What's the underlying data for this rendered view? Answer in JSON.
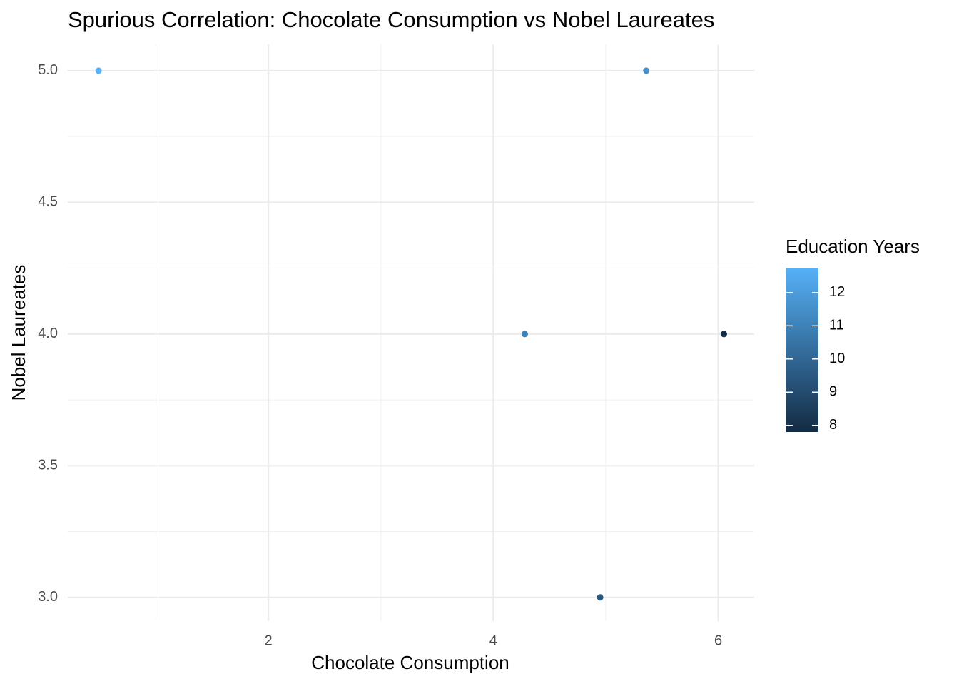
{
  "chart_data": {
    "type": "scatter",
    "title": "Spurious Correlation: Chocolate Consumption vs Nobel Laureates",
    "x_label": "Chocolate Consumption",
    "y_label": "Nobel Laureates",
    "x": [
      0.49,
      5.36,
      4.28,
      6.05,
      4.95
    ],
    "values": [
      5.0,
      5.0,
      4.0,
      4.0,
      3.0
    ],
    "color_values": [
      12.8,
      11.5,
      11.0,
      8.0,
      9.5
    ],
    "xlim": [
      0.216,
      6.32
    ],
    "ylim": [
      2.91,
      5.1
    ],
    "xticks": [
      2,
      4,
      6
    ],
    "yticks": [
      {
        "value": 3,
        "label": "3.0"
      },
      {
        "value": 3.5,
        "label": "3.5"
      },
      {
        "value": 4,
        "label": "4.0"
      },
      {
        "value": 4.5,
        "label": "4.5"
      },
      {
        "value": 5,
        "label": "5.0"
      }
    ],
    "x_minor_ticks": [
      1,
      3,
      5
    ],
    "y_minor_ticks": [
      3.25,
      3.75,
      4.25,
      4.75
    ],
    "grid": true,
    "legend": {
      "title": "Education Years",
      "position": "right",
      "colorlim": [
        7.8,
        12.75
      ],
      "ticks": [
        8,
        9,
        10,
        11,
        12
      ],
      "low_color": "#132B43",
      "high_color": "#56B1F7"
    }
  }
}
